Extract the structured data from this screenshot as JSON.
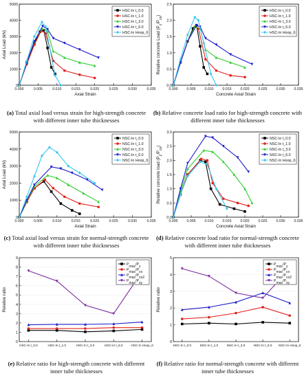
{
  "captions": {
    "a": {
      "tag": "(a)",
      "text": "Total axial load versus strain for high-strength concrete with different inner tube thicknesses"
    },
    "b": {
      "tag": "(b)",
      "text": "Relative concrete load ratio for high-strength concrete with different inner tube thicknesses"
    },
    "c": {
      "tag": "(c)",
      "text": "Total axial load versus strain for normal-strength concrete with different inner tube thicknesses"
    },
    "d": {
      "tag": "(d)",
      "text": "Relative concrete load ratio for normal-strength concrete with different inner tube thicknesses"
    },
    "e": {
      "tag": "(e)",
      "text": "Relative ratio for high-strength concrete with different inner tube thicknesses"
    },
    "f": {
      "tag": "(f)",
      "text": "Relative ratio for normal-strength concrete with different inner tube thicknesses"
    }
  },
  "colors": {
    "black": "#000000",
    "red": "#e0201b",
    "green": "#2ecc2e",
    "blue": "#1a1acc",
    "cyan": "#33c6f0",
    "purple": "#7a2aa0"
  },
  "chart_data": [
    {
      "id": "a",
      "type": "line",
      "xlabel": "Axial Strain",
      "ylabel": "Axial Load (kN)",
      "xlim": [
        0,
        0.035
      ],
      "ylim": [
        0,
        5000
      ],
      "xticks": [
        "0.000",
        "0.005",
        "0.010",
        "0.015",
        "0.020",
        "0.025",
        "0.030",
        "0.035"
      ],
      "yticks": [
        "0",
        "1000",
        "2000",
        "3000",
        "4000",
        "5000"
      ],
      "legend": "top-right",
      "series": [
        {
          "name": "HSC-In t_0.0",
          "color": "black",
          "marker": "square",
          "x": [
            0,
            0.002,
            0.004,
            0.0055,
            0.0065,
            0.0075,
            0.0085,
            0.0095
          ],
          "y": [
            0,
            1400,
            2600,
            3300,
            3400,
            2300,
            1100,
            700
          ]
        },
        {
          "name": "HSC-In t_1.0",
          "color": "red",
          "marker": "circle",
          "x": [
            0,
            0.002,
            0.004,
            0.0058,
            0.007,
            0.009,
            0.012,
            0.016,
            0.02
          ],
          "y": [
            0,
            1300,
            2500,
            3350,
            3200,
            1500,
            900,
            650,
            450
          ]
        },
        {
          "name": "HSC-In t_3.0",
          "color": "green",
          "marker": "triangle",
          "x": [
            0,
            0.002,
            0.004,
            0.006,
            0.0075,
            0.009,
            0.012,
            0.016,
            0.02
          ],
          "y": [
            0,
            1400,
            2700,
            3500,
            3300,
            2100,
            1700,
            1400,
            1200
          ]
        },
        {
          "name": "HSC-In t_6.0",
          "color": "blue",
          "marker": "triangle-down",
          "x": [
            0,
            0.002,
            0.004,
            0.0062,
            0.0075,
            0.009,
            0.012,
            0.016,
            0.021
          ],
          "y": [
            0,
            1400,
            2700,
            3650,
            3450,
            2900,
            2600,
            2200,
            1700
          ]
        },
        {
          "name": "HSC-In Hoop_6",
          "color": "cyan",
          "marker": "diamond",
          "x": [
            0,
            0.002,
            0.004,
            0.006,
            0.007,
            0.008,
            0.0095,
            0.011
          ],
          "y": [
            0,
            1500,
            3000,
            3900,
            3600,
            2400,
            600,
            0
          ]
        }
      ]
    },
    {
      "id": "b",
      "type": "line",
      "xlabel": "Concrete Axial Strain",
      "ylabel": "Relative concrete Load (P_c/P_co)",
      "xlim": [
        0,
        0.035
      ],
      "ylim": [
        0,
        2.5
      ],
      "xticks": [
        "0.000",
        "0.005",
        "0.010",
        "0.015",
        "0.020",
        "0.025",
        "0.030",
        "0.035"
      ],
      "yticks": [
        "0.0",
        "0.5",
        "1.0",
        "1.5",
        "2.0",
        "2.5"
      ],
      "legend": "top-right",
      "series": [
        {
          "name": "HSC-In t_0.0",
          "color": "black",
          "marker": "square",
          "x": [
            0,
            0.002,
            0.004,
            0.0055,
            0.0065,
            0.0075,
            0.0085,
            0.0095
          ],
          "y": [
            0,
            0.7,
            1.35,
            1.75,
            1.85,
            1.2,
            0.55,
            0.35
          ]
        },
        {
          "name": "HSC-In t_1.0",
          "color": "red",
          "marker": "circle",
          "x": [
            0,
            0.002,
            0.004,
            0.006,
            0.007,
            0.009,
            0.012,
            0.016,
            0.02
          ],
          "y": [
            0,
            0.7,
            1.35,
            1.8,
            1.75,
            0.8,
            0.45,
            0.3,
            0.25
          ]
        },
        {
          "name": "HSC-In t_3.0",
          "color": "green",
          "marker": "triangle",
          "x": [
            0,
            0.002,
            0.004,
            0.006,
            0.0075,
            0.009,
            0.012,
            0.016,
            0.02
          ],
          "y": [
            0,
            0.7,
            1.35,
            1.8,
            1.75,
            1.1,
            0.85,
            0.7,
            0.55
          ]
        },
        {
          "name": "HSC-In t_6.0",
          "color": "blue",
          "marker": "triangle-down",
          "x": [
            0,
            0.002,
            0.004,
            0.0065,
            0.0075,
            0.009,
            0.012,
            0.016,
            0.022
          ],
          "y": [
            0,
            0.7,
            1.35,
            1.85,
            1.8,
            1.45,
            1.25,
            0.95,
            0.65
          ]
        },
        {
          "name": "HSC-In Hoop_6",
          "color": "cyan",
          "marker": "diamond",
          "x": [
            0,
            0.002,
            0.004,
            0.006,
            0.007,
            0.0085,
            0.0105,
            0.012
          ],
          "y": [
            0,
            0.8,
            1.55,
            2.1,
            2.0,
            1.3,
            0.35,
            0
          ]
        }
      ]
    },
    {
      "id": "c",
      "type": "line",
      "xlabel": "Axial Strain",
      "ylabel": "Axial Load (kN)",
      "xlim": [
        0,
        0.035
      ],
      "ylim": [
        0,
        5000
      ],
      "xticks": [
        "0.000",
        "0.005",
        "0.010",
        "0.015",
        "0.020",
        "0.025",
        "0.030",
        "0.035"
      ],
      "yticks": [
        "0",
        "1000",
        "2000",
        "3000",
        "4000",
        "5000"
      ],
      "legend": "top-right",
      "series": [
        {
          "name": "NSC-In t_0.0",
          "color": "black",
          "marker": "square",
          "x": [
            0,
            0.002,
            0.004,
            0.0065,
            0.0085,
            0.011,
            0.014,
            0.016
          ],
          "y": [
            0,
            900,
            1700,
            2100,
            1500,
            800,
            400,
            200
          ]
        },
        {
          "name": "NSC-In t_1.0",
          "color": "red",
          "marker": "circle",
          "x": [
            0,
            0.002,
            0.004,
            0.0068,
            0.009,
            0.012,
            0.016,
            0.021
          ],
          "y": [
            0,
            900,
            1700,
            2200,
            1700,
            1200,
            800,
            600
          ]
        },
        {
          "name": "NSC-In t_3.0",
          "color": "green",
          "marker": "triangle",
          "x": [
            0,
            0.002,
            0.004,
            0.0075,
            0.01,
            0.013,
            0.017,
            0.021
          ],
          "y": [
            0,
            950,
            1800,
            2450,
            2300,
            1900,
            1400,
            900
          ]
        },
        {
          "name": "NSC-In t_6.0",
          "color": "blue",
          "marker": "triangle-down",
          "x": [
            0,
            0.002,
            0.004,
            0.0085,
            0.011,
            0.014,
            0.018,
            0.022
          ],
          "y": [
            0,
            1000,
            1900,
            2950,
            2850,
            2600,
            2200,
            1600
          ]
        },
        {
          "name": "NSC-In Hoop_6",
          "color": "cyan",
          "marker": "diamond",
          "x": [
            0,
            0.002,
            0.004,
            0.006,
            0.008,
            0.01,
            0.013,
            0.016,
            0.02
          ],
          "y": [
            0,
            1200,
            2400,
            3600,
            4100,
            3800,
            3000,
            2600,
            2000
          ]
        }
      ]
    },
    {
      "id": "d",
      "type": "line",
      "xlabel": "Concrete Axial Strain",
      "ylabel": "Relative concrete load (P_c/P_co)",
      "xlim": [
        0,
        0.035
      ],
      "ylim": [
        0,
        3.0
      ],
      "xticks": [
        "0.000",
        "0.005",
        "0.010",
        "0.015",
        "0.020",
        "0.025",
        "0.030",
        "0.035"
      ],
      "yticks": [
        "0.0",
        "0.5",
        "1.0",
        "1.5",
        "2.0",
        "2.5",
        "3.0"
      ],
      "legend": "top-right",
      "series": [
        {
          "name": "NSC-In t_0.0",
          "color": "black",
          "marker": "square",
          "x": [
            0,
            0.002,
            0.004,
            0.0075,
            0.009,
            0.0105,
            0.013,
            0.017,
            0.02
          ],
          "y": [
            0,
            0.8,
            1.5,
            2.0,
            1.95,
            1.0,
            0.45,
            0.3,
            0.2
          ]
        },
        {
          "name": "NSC-In t_1.0",
          "color": "red",
          "marker": "circle",
          "x": [
            0,
            0.002,
            0.004,
            0.0078,
            0.0095,
            0.011,
            0.014,
            0.018,
            0.021
          ],
          "y": [
            0,
            0.8,
            1.5,
            2.05,
            2.0,
            1.2,
            0.65,
            0.5,
            0.4
          ]
        },
        {
          "name": "NSC-In t_3.0",
          "color": "green",
          "marker": "triangle",
          "x": [
            0,
            0.002,
            0.004,
            0.0085,
            0.011,
            0.014,
            0.017,
            0.02,
            0.022
          ],
          "y": [
            0,
            0.9,
            1.7,
            2.35,
            2.3,
            1.95,
            1.5,
            1.0,
            0.5
          ]
        },
        {
          "name": "NSC-In t_6.0",
          "color": "blue",
          "marker": "triangle-down",
          "x": [
            0,
            0.002,
            0.004,
            0.009,
            0.011,
            0.014,
            0.018,
            0.021
          ],
          "y": [
            0,
            1.0,
            1.9,
            2.85,
            2.8,
            2.5,
            2.1,
            1.6
          ]
        },
        {
          "name": "NSC-In Hoop_6",
          "color": "cyan",
          "marker": "diamond",
          "x": [
            0,
            0.002,
            0.004,
            0.0075,
            0.0095,
            0.012,
            0.015
          ],
          "y": [
            0,
            0.8,
            1.45,
            1.95,
            1.85,
            1.0,
            0.3
          ]
        }
      ]
    },
    {
      "id": "e",
      "type": "line",
      "xlabel": "",
      "ylabel": "Relative ratio",
      "ylim": [
        0,
        9
      ],
      "categories": [
        "HSC-In t_0.0",
        "HSC-In t_1.0",
        "HSC-In t_3.0",
        "HSC-In t_6.0",
        "HSC-In Hoop_6"
      ],
      "yticks": [
        "0",
        "1",
        "2",
        "3",
        "4",
        "5",
        "6",
        "7",
        "8",
        "9"
      ],
      "legend": "top-right",
      "series": [
        {
          "name": "P_max/P_y",
          "color": "black",
          "marker": "square",
          "values": [
            1.2,
            1.2,
            1.05,
            1.15,
            1.3
          ]
        },
        {
          "name": "P_max/P_co",
          "color": "red",
          "marker": "circle",
          "values": [
            1.4,
            1.4,
            1.4,
            1.5,
            1.5
          ]
        },
        {
          "name": "P_max/P_co2",
          "color": "blue",
          "marker": "triangle",
          "values": [
            1.8,
            1.85,
            1.85,
            1.9,
            2.1
          ]
        },
        {
          "name": "P_max/P_sy",
          "color": "purple",
          "marker": "triangle-down",
          "values": [
            7.6,
            6.5,
            3.9,
            3.0,
            7.5
          ]
        }
      ]
    },
    {
      "id": "f",
      "type": "line",
      "xlabel": "",
      "ylabel": "Relative ratio",
      "ylim": [
        0,
        5
      ],
      "categories": [
        "NSC-In t_0.0",
        "NSC-In t_1.0",
        "NSC-In t_3.0",
        "NSC-In t_6.0",
        "NSC-In Hoop_6"
      ],
      "yticks": [
        "0",
        "1",
        "2",
        "3",
        "4",
        "5"
      ],
      "legend": "top-right",
      "series": [
        {
          "name": "P_max/P_y",
          "color": "black",
          "marker": "square",
          "values": [
            1.05,
            1.1,
            1.05,
            1.15,
            1.1
          ]
        },
        {
          "name": "P_max/P_co",
          "color": "red",
          "marker": "circle",
          "values": [
            1.35,
            1.45,
            1.7,
            2.05,
            1.55
          ]
        },
        {
          "name": "P_max/P_co2",
          "color": "blue",
          "marker": "triangle",
          "values": [
            1.9,
            2.05,
            2.35,
            2.9,
            2.3
          ]
        },
        {
          "name": "P_max/P_sy",
          "color": "purple",
          "marker": "triangle-down",
          "values": [
            4.35,
            3.9,
            2.9,
            2.6,
            4.35
          ]
        }
      ]
    }
  ]
}
